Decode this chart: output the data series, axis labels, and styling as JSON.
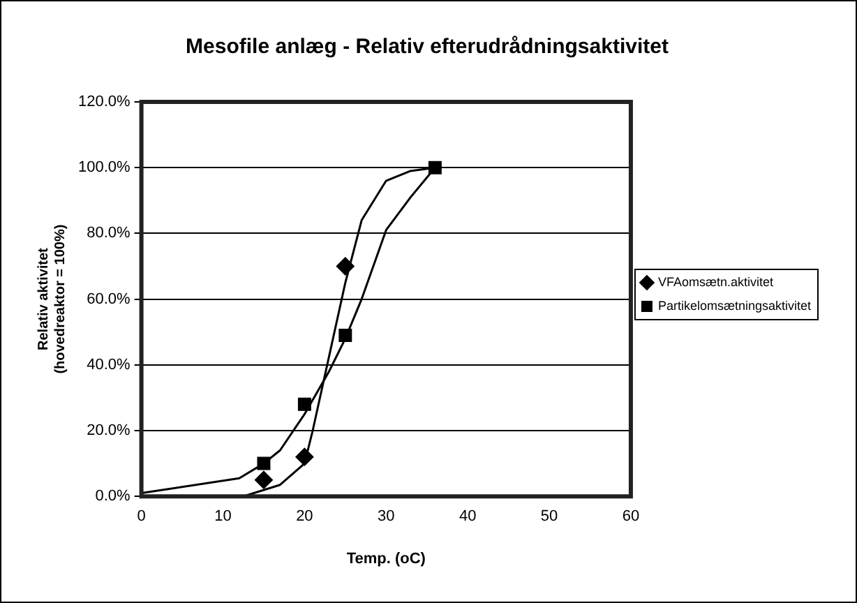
{
  "chart_data": {
    "type": "scatter",
    "title": "Mesofile anlæg - Relativ efterudrådningsaktivitet",
    "xlabel": "Temp. (oC)",
    "ylabel": "Relativ aktivitet\n(hovedreaktor = 100%)",
    "xlim": [
      0,
      60
    ],
    "xticks": [
      0,
      10,
      20,
      30,
      40,
      50,
      60
    ],
    "ylim": [
      0,
      120
    ],
    "yticks": [
      {
        "value": 0,
        "label": "0.0%"
      },
      {
        "value": 20,
        "label": "20.0%"
      },
      {
        "value": 40,
        "label": "40.0%"
      },
      {
        "value": 60,
        "label": "60.0%"
      },
      {
        "value": 80,
        "label": "80.0%"
      },
      {
        "value": 100,
        "label": "100.0%"
      },
      {
        "value": 120,
        "label": "120.0%"
      }
    ],
    "grid": "y",
    "legend": "right",
    "series": [
      {
        "name": "VFAomsætn.aktivitet",
        "marker": "diamond",
        "color": "#000000",
        "x": [
          15,
          20,
          25
        ],
        "values": [
          5,
          12,
          70
        ]
      },
      {
        "name": "Partikelomsætningsaktivitet",
        "marker": "square",
        "color": "#000000",
        "x": [
          15,
          20,
          25,
          36
        ],
        "values": [
          10,
          28,
          49,
          100
        ]
      },
      {
        "type": "line",
        "marker": "none",
        "color": "#000000",
        "x": [
          0,
          12,
          15,
          17,
          20,
          23,
          25,
          27,
          30,
          33,
          36
        ],
        "values": [
          1,
          5.5,
          10,
          14,
          25,
          38,
          48,
          60,
          81,
          91,
          100
        ]
      },
      {
        "type": "line",
        "marker": "none",
        "color": "#000000",
        "x": [
          12.5,
          17,
          20,
          21,
          25,
          27,
          30,
          33,
          36
        ],
        "values": [
          0,
          3.5,
          10,
          20,
          65,
          84,
          96,
          99,
          100
        ]
      }
    ]
  }
}
